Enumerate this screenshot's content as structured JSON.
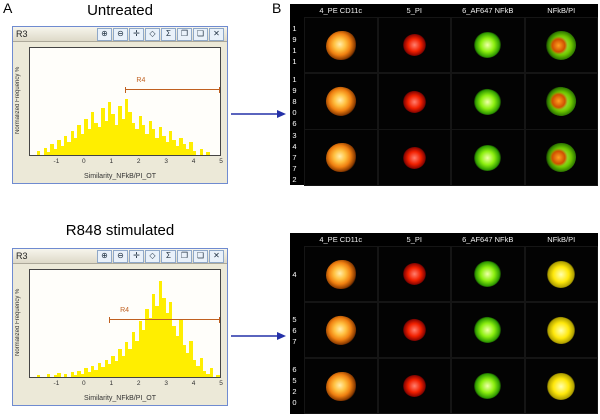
{
  "figure": {
    "panelA_label": "A",
    "panelB_label": "B"
  },
  "arrow_color": "#2431a8",
  "plots": [
    {
      "title": "Untreated",
      "window_title": "R3"
    },
    {
      "title": "R848 stimulated",
      "window_title": "R3"
    }
  ],
  "toolbar_icons": [
    {
      "name": "zoom-in-icon",
      "glyph": "⊕"
    },
    {
      "name": "zoom-out-icon",
      "glyph": "⊖"
    },
    {
      "name": "pan-icon",
      "glyph": "✛"
    },
    {
      "name": "region-icon",
      "glyph": "◇"
    },
    {
      "name": "statistics-icon",
      "glyph": "Σ"
    },
    {
      "name": "copy-plot-icon",
      "glyph": "❐"
    },
    {
      "name": "export-icon",
      "glyph": "❏"
    },
    {
      "name": "close-icon",
      "glyph": "✕"
    }
  ],
  "galleries": [
    {
      "headers": [
        "4_PE CD11c",
        "5_PI",
        "6_AF647 NFkB",
        "NFkB/PI"
      ],
      "rows": [
        {
          "id": "1911",
          "channels": [
            "pe",
            "pi",
            "nfkb",
            "overlay_sep"
          ]
        },
        {
          "id": "19806",
          "channels": [
            "pe",
            "pi",
            "nfkb",
            "overlay_sep"
          ]
        },
        {
          "id": "34772",
          "channels": [
            "pe",
            "pi",
            "nfkb",
            "overlay_sep"
          ]
        }
      ]
    },
    {
      "headers": [
        "4_PE CD11c",
        "5_PI",
        "6_AF647 NFkB",
        "NFkB/PI"
      ],
      "rows": [
        {
          "id": "4",
          "channels": [
            "pe",
            "pi",
            "nfkb",
            "overlay_co"
          ]
        },
        {
          "id": "567",
          "channels": [
            "pe",
            "pi",
            "nfkb",
            "overlay_co"
          ]
        },
        {
          "id": "6520",
          "channels": [
            "pe",
            "pi",
            "nfkb",
            "overlay_co"
          ]
        }
      ]
    }
  ],
  "chart_data": [
    {
      "type": "bar",
      "subtype": "histogram",
      "title": "Untreated",
      "xlabel": "Similarity_NFkB/PI_OT",
      "ylabel": "Normalized Frequency %",
      "xlim": [
        -2,
        5
      ],
      "xticks": [
        -1,
        0,
        1,
        2,
        3,
        4,
        5
      ],
      "bin_width": 0.125,
      "bar_color": "#ffee00",
      "region": {
        "label": "R4",
        "x_start": 1.5,
        "x_end": 5,
        "y_pct": 38
      },
      "values": [
        0,
        0,
        4,
        0,
        7,
        3,
        10,
        6,
        14,
        8,
        18,
        12,
        22,
        16,
        28,
        20,
        34,
        24,
        40,
        30,
        26,
        44,
        32,
        50,
        38,
        28,
        46,
        34,
        52,
        40,
        30,
        24,
        36,
        28,
        20,
        32,
        24,
        16,
        26,
        18,
        12,
        22,
        14,
        8,
        16,
        10,
        6,
        12,
        4,
        0,
        6,
        0,
        3,
        0,
        0,
        0
      ]
    },
    {
      "type": "bar",
      "subtype": "histogram",
      "title": "R848 stimulated",
      "xlabel": "Similarity_NFkB/PI_OT",
      "ylabel": "Normalized Frequency %",
      "xlim": [
        -2,
        5
      ],
      "xticks": [
        -1,
        0,
        1,
        2,
        3,
        4,
        5
      ],
      "bin_width": 0.125,
      "bar_color": "#ffee00",
      "region": {
        "label": "R4",
        "x_start": 0.9,
        "x_end": 5,
        "y_pct": 46
      },
      "values": [
        0,
        0,
        2,
        0,
        0,
        3,
        0,
        2,
        4,
        0,
        3,
        0,
        5,
        2,
        6,
        3,
        8,
        5,
        10,
        7,
        13,
        9,
        16,
        12,
        20,
        15,
        26,
        20,
        33,
        26,
        42,
        34,
        52,
        44,
        64,
        55,
        78,
        66,
        90,
        74,
        60,
        70,
        48,
        38,
        54,
        30,
        22,
        34,
        16,
        10,
        18,
        6,
        3,
        8,
        0,
        2
      ]
    }
  ]
}
